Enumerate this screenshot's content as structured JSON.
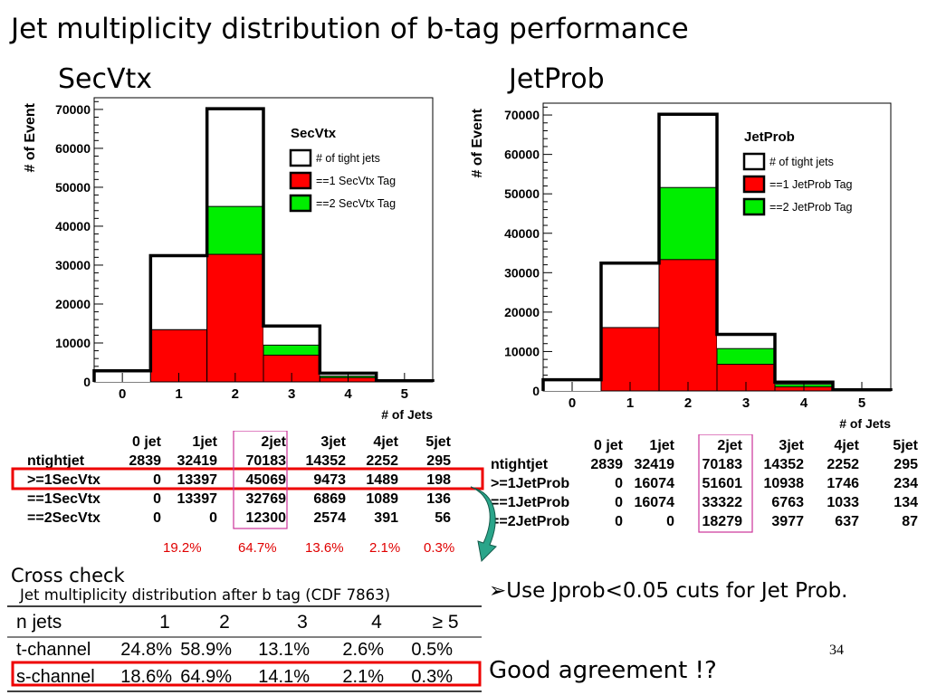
{
  "slide": {
    "title": "Jet multiplicity distribution of b-tag performance",
    "page_number": "34",
    "left_heading": "SecVtx",
    "right_heading": "JetProb",
    "cross_check_label": "Cross check",
    "cross_check_caption": "Jet multiplicity distribution after b tag (CDF 7863)",
    "bullet_text": "Use Jprob<0.05 cuts for Jet Prob.",
    "conclusion": "Good agreement !?"
  },
  "colors": {
    "tight": "#ffffff",
    "tag1": "#ff0000",
    "tag2": "#00ee00",
    "highlight": "#ee0000",
    "box": "#cc3399",
    "arrow": "#2aa58a"
  },
  "chart_data": [
    {
      "type": "bar",
      "title": "SecVtx",
      "xlabel": "# of Jets",
      "ylabel": "# of Event",
      "categories": [
        "0",
        "1",
        "2",
        "3",
        "4",
        "5"
      ],
      "yticks": [
        "0",
        "10000",
        "20000",
        "30000",
        "40000",
        "50000",
        "60000",
        "70000"
      ],
      "ylim": [
        0,
        73000
      ],
      "series": [
        {
          "name": "# of tight jets",
          "values": [
            2839,
            32419,
            70183,
            14352,
            2252,
            295
          ]
        },
        {
          "name": "==1 SecVtx Tag",
          "values": [
            0,
            13397,
            32769,
            6869,
            1089,
            136
          ]
        },
        {
          "name": "==2 SecVtx Tag",
          "values": [
            0,
            13397,
            45069,
            9443,
            1480,
            192
          ]
        }
      ],
      "legend": "top-right"
    },
    {
      "type": "bar",
      "title": "JetProb",
      "xlabel": "# of Jets",
      "ylabel": "# of Event",
      "categories": [
        "0",
        "1",
        "2",
        "3",
        "4",
        "5"
      ],
      "yticks": [
        "0",
        "10000",
        "20000",
        "30000",
        "40000",
        "50000",
        "60000",
        "70000"
      ],
      "ylim": [
        0,
        73000
      ],
      "series": [
        {
          "name": "# of tight jets",
          "values": [
            2839,
            32419,
            70183,
            14352,
            2252,
            295
          ]
        },
        {
          "name": "==1 JetProb Tag",
          "values": [
            0,
            16074,
            33322,
            6763,
            1033,
            134
          ]
        },
        {
          "name": "==2 JetProb Tag",
          "values": [
            0,
            16074,
            51601,
            10740,
            1670,
            221
          ]
        }
      ],
      "legend": "top-right"
    },
    {
      "type": "table",
      "columns": [
        "0 jet",
        "1jet",
        "2jet",
        "3jet",
        "4jet",
        "5jet"
      ],
      "rows": [
        {
          "label": "ntightjet",
          "values": [
            "2839",
            "32419",
            "70183",
            "14352",
            "2252",
            "295"
          ]
        },
        {
          "label": ">=1SecVtx",
          "values": [
            "0",
            "13397",
            "45069",
            "9473",
            "1489",
            "198"
          ]
        },
        {
          "label": "==1SecVtx",
          "values": [
            "0",
            "13397",
            "32769",
            "6869",
            "1089",
            "136"
          ]
        },
        {
          "label": "==2SecVtx",
          "values": [
            "0",
            "0",
            "12300",
            "2574",
            "391",
            "56"
          ]
        }
      ],
      "percentages": [
        "19.2%",
        "64.7%",
        "13.6%",
        "2.1%",
        "0.3%"
      ]
    },
    {
      "type": "table",
      "columns": [
        "0 jet",
        "1jet",
        "2jet",
        "3jet",
        "4jet",
        "5jet"
      ],
      "rows": [
        {
          "label": "ntightjet",
          "values": [
            "2839",
            "32419",
            "70183",
            "14352",
            "2252",
            "295"
          ]
        },
        {
          "label": ">=1JetProb",
          "values": [
            "0",
            "16074",
            "51601",
            "10938",
            "1746",
            "234"
          ]
        },
        {
          "label": "==1JetProb",
          "values": [
            "0",
            "16074",
            "33322",
            "6763",
            "1033",
            "134"
          ]
        },
        {
          "label": "==2JetProb",
          "values": [
            "0",
            "0",
            "18279",
            "3977",
            "637",
            "87"
          ]
        }
      ]
    },
    {
      "type": "table",
      "columns": [
        "n jets",
        "1",
        "2",
        "3",
        "4",
        "≥ 5"
      ],
      "rows": [
        {
          "label": "t-channel",
          "values": [
            "24.8%",
            "58.9%",
            "13.1%",
            "2.6%",
            "0.5%"
          ]
        },
        {
          "label": "s-channel",
          "values": [
            "18.6%",
            "64.9%",
            "14.1%",
            "2.1%",
            "0.3%"
          ]
        }
      ]
    }
  ]
}
